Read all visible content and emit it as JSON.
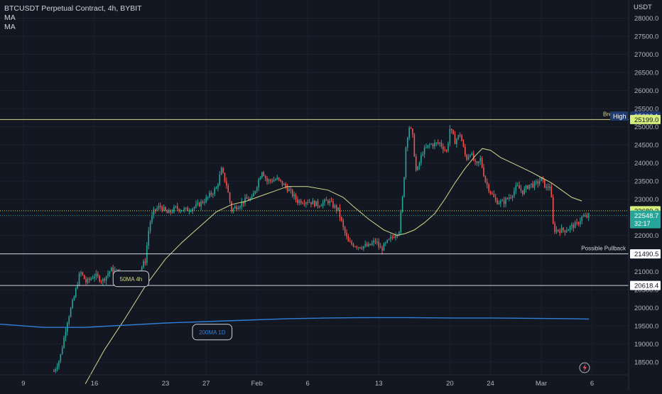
{
  "header": {
    "symbol_line": "BTCUSDT Perpetual Contract, 4h, BYBIT",
    "indicators": [
      "MA",
      "MA"
    ]
  },
  "currency": "USDT",
  "chart_data": {
    "type": "candlestick",
    "title": "BTCUSDT Perpetual Contract, 4h, BYBIT",
    "ylim": [
      18150,
      28500
    ],
    "y_ticks": [
      18500,
      19000,
      19500,
      20000,
      20500,
      21000,
      21500,
      22000,
      22500,
      23000,
      23500,
      24000,
      24500,
      25000,
      25500,
      26000,
      26500,
      27000,
      27500,
      28000
    ],
    "y_tick_labels": [
      "18500.0",
      "19000.0",
      "19500.0",
      "20000.0",
      "20500.0",
      "21000.0",
      "21500.0",
      "22000.0",
      "22500.0",
      "23000.0",
      "23500.0",
      "24000.0",
      "24500.0",
      "25000.0",
      "25500.0",
      "26000.0",
      "26500.0",
      "27000.0",
      "27500.0",
      "28000.0"
    ],
    "x_ticks": [
      {
        "label": "9",
        "day": 0
      },
      {
        "label": "16",
        "day": 7
      },
      {
        "label": "23",
        "day": 14
      },
      {
        "label": "27",
        "day": 18
      },
      {
        "label": "Feb",
        "day": 23
      },
      {
        "label": "6",
        "day": 28
      },
      {
        "label": "13",
        "day": 35
      },
      {
        "label": "20",
        "day": 42
      },
      {
        "label": "24",
        "day": 46
      },
      {
        "label": "Mar",
        "day": 51
      },
      {
        "label": "6",
        "day": 56
      }
    ],
    "xlim_days": [
      -2.3,
      59.6
    ],
    "close_path": [
      [
        3.0,
        18250
      ],
      [
        3.6,
        18600
      ],
      [
        4.3,
        19600
      ],
      [
        5.0,
        20300
      ],
      [
        5.6,
        21000
      ],
      [
        6.2,
        20700
      ],
      [
        7.0,
        20900
      ],
      [
        7.8,
        20750
      ],
      [
        8.6,
        21050
      ],
      [
        9.3,
        21000
      ],
      [
        10.0,
        20750
      ],
      [
        10.6,
        20850
      ],
      [
        11.0,
        20900
      ],
      [
        11.6,
        21100
      ],
      [
        12.0,
        21300
      ],
      [
        12.4,
        22300
      ],
      [
        12.9,
        22700
      ],
      [
        13.5,
        22800
      ],
      [
        14.2,
        22600
      ],
      [
        15.0,
        22750
      ],
      [
        16.0,
        22700
      ],
      [
        17.0,
        22800
      ],
      [
        18.0,
        23000
      ],
      [
        19.0,
        23300
      ],
      [
        19.5,
        23800
      ],
      [
        20.0,
        23400
      ],
      [
        20.5,
        22700
      ],
      [
        21.0,
        22800
      ],
      [
        22.0,
        23000
      ],
      [
        22.5,
        23000
      ],
      [
        23.0,
        23400
      ],
      [
        23.5,
        23800
      ],
      [
        24.0,
        23500
      ],
      [
        25.0,
        23550
      ],
      [
        26.0,
        23300
      ],
      [
        27.0,
        22950
      ],
      [
        28.0,
        22950
      ],
      [
        29.0,
        22850
      ],
      [
        30.0,
        22950
      ],
      [
        31.0,
        22700
      ],
      [
        31.5,
        22200
      ],
      [
        32.0,
        21800
      ],
      [
        33.0,
        21700
      ],
      [
        34.0,
        21700
      ],
      [
        34.7,
        21850
      ],
      [
        35.2,
        21600
      ],
      [
        35.8,
        21800
      ],
      [
        36.5,
        22000
      ],
      [
        37.0,
        22150
      ],
      [
        37.4,
        23200
      ],
      [
        37.7,
        24600
      ],
      [
        38.0,
        25000
      ],
      [
        38.3,
        24800
      ],
      [
        38.7,
        23700
      ],
      [
        39.3,
        24300
      ],
      [
        40.0,
        24500
      ],
      [
        41.0,
        24550
      ],
      [
        41.7,
        24300
      ],
      [
        42.0,
        24950
      ],
      [
        42.5,
        24600
      ],
      [
        43.0,
        24800
      ],
      [
        43.6,
        24100
      ],
      [
        44.0,
        24300
      ],
      [
        44.6,
        23900
      ],
      [
        45.0,
        24100
      ],
      [
        45.5,
        23500
      ],
      [
        46.0,
        23200
      ],
      [
        46.5,
        22950
      ],
      [
        47.2,
        22900
      ],
      [
        48.0,
        23100
      ],
      [
        48.6,
        23350
      ],
      [
        49.2,
        23200
      ],
      [
        49.8,
        23400
      ],
      [
        50.4,
        23400
      ],
      [
        51.0,
        23550
      ],
      [
        51.5,
        23300
      ],
      [
        51.9,
        23400
      ],
      [
        52.2,
        22150
      ],
      [
        52.6,
        22150
      ],
      [
        53.4,
        22150
      ],
      [
        54.0,
        22250
      ],
      [
        54.5,
        22300
      ],
      [
        55.0,
        22500
      ],
      [
        55.4,
        22500
      ],
      [
        55.7,
        22548.7
      ]
    ],
    "series": [
      {
        "name": "50MA 4h",
        "color": "#d4d98c",
        "points": [
          [
            6.1,
            17900
          ],
          [
            8.0,
            18850
          ],
          [
            10.0,
            19700
          ],
          [
            12.0,
            20600
          ],
          [
            14.0,
            21350
          ],
          [
            15.6,
            21800
          ],
          [
            17.0,
            22150
          ],
          [
            18.0,
            22400
          ],
          [
            19.0,
            22650
          ],
          [
            20.5,
            22850
          ],
          [
            22.0,
            22950
          ],
          [
            24.0,
            23150
          ],
          [
            26.0,
            23350
          ],
          [
            28.0,
            23350
          ],
          [
            30.0,
            23250
          ],
          [
            31.5,
            23050
          ],
          [
            32.5,
            22800
          ],
          [
            34.0,
            22450
          ],
          [
            35.5,
            22150
          ],
          [
            36.8,
            22000
          ],
          [
            37.6,
            22050
          ],
          [
            38.5,
            22150
          ],
          [
            39.5,
            22350
          ],
          [
            40.5,
            22600
          ],
          [
            41.5,
            23000
          ],
          [
            42.5,
            23450
          ],
          [
            43.5,
            23850
          ],
          [
            44.5,
            24200
          ],
          [
            45.2,
            24400
          ],
          [
            46.0,
            24350
          ],
          [
            47.0,
            24150
          ],
          [
            48.5,
            23950
          ],
          [
            50.0,
            23750
          ],
          [
            51.0,
            23600
          ],
          [
            52.0,
            23450
          ],
          [
            53.0,
            23250
          ],
          [
            54.0,
            23050
          ],
          [
            55.0,
            22950
          ]
        ]
      },
      {
        "name": "200MA 1D",
        "color": "#2e7fd6",
        "points": [
          [
            -2.3,
            19550
          ],
          [
            2.0,
            19460
          ],
          [
            6.0,
            19460
          ],
          [
            10.0,
            19520
          ],
          [
            14.0,
            19580
          ],
          [
            18.0,
            19620
          ],
          [
            22.0,
            19660
          ],
          [
            26.0,
            19700
          ],
          [
            30.0,
            19720
          ],
          [
            34.0,
            19730
          ],
          [
            38.0,
            19730
          ],
          [
            42.0,
            19720
          ],
          [
            46.0,
            19720
          ],
          [
            50.0,
            19710
          ],
          [
            54.0,
            19700
          ],
          [
            55.7,
            19690
          ]
        ]
      }
    ],
    "horizontal_levels": [
      {
        "label": "Breakout",
        "value": 25199.0,
        "color": "#d4d98c",
        "price_tag": "25199.0"
      },
      {
        "label": "Possible Pullback",
        "value": 21490.5,
        "color": "#d1d4dc",
        "price_tag": "21490.5"
      },
      {
        "label": "",
        "value": 20618.4,
        "color": "#d1d4dc",
        "price_tag": "20618.4"
      }
    ],
    "dotted_levels": [
      {
        "value": 22680.3,
        "price_tag": "22680.3",
        "color": "#c9d85c"
      },
      {
        "value": 22548.7,
        "price_tag": "22548.7",
        "color": "#26a69a"
      }
    ],
    "high_marker": {
      "label": "High",
      "value": 25296.1,
      "price_tag": "25296.1"
    },
    "countdown": "32:17",
    "annotations": [
      {
        "text": "50MA 4h",
        "day": 10.6,
        "value": 20800,
        "color": "#d4d98c"
      },
      {
        "text": "200MA 1D",
        "day": 18.6,
        "value": 19330,
        "color": "#2e7fd6"
      }
    ],
    "up_color": "#26a69a",
    "down_color": "#ef5350"
  }
}
